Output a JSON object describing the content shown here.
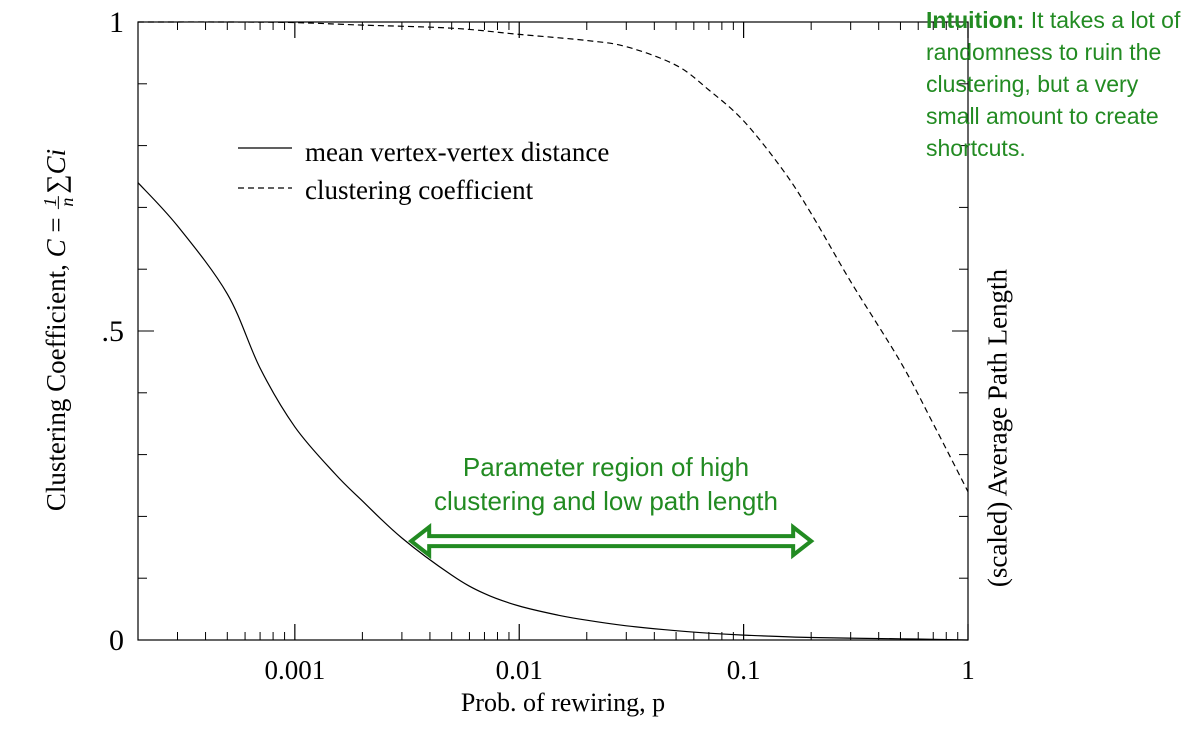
{
  "chart_data": {
    "type": "line",
    "x_scale": "log",
    "xlim": [
      0.0002,
      1
    ],
    "ylim": [
      0,
      1
    ],
    "x_ticks": [
      0.001,
      0.01,
      0.1,
      1
    ],
    "x_tick_labels": [
      "0.001",
      "0.01",
      "0.1",
      "1"
    ],
    "y_ticks": [
      0,
      0.5,
      1
    ],
    "y_tick_labels": [
      "0",
      ".5",
      "1"
    ],
    "xlabel": "Prob. of rewiring, p",
    "ylabel": {
      "text": "Clustering Coefficient, ",
      "var": "C",
      "eq": " = ",
      "frac_num": "1",
      "frac_den": "n",
      "sum": "∑",
      "term": "Ci"
    },
    "y2label": "(scaled) Average Path Length",
    "legend_placement": "upper-left",
    "series": [
      {
        "name": "mean vertex-vertex distance",
        "style": "solid",
        "x": [
          0.0002,
          0.0003,
          0.0005,
          0.0007,
          0.001,
          0.0015,
          0.002,
          0.003,
          0.005,
          0.007,
          0.01,
          0.015,
          0.02,
          0.03,
          0.05,
          0.07,
          0.1,
          0.2,
          0.5,
          1
        ],
        "y": [
          0.74,
          0.67,
          0.56,
          0.44,
          0.345,
          0.27,
          0.225,
          0.165,
          0.105,
          0.075,
          0.055,
          0.04,
          0.032,
          0.023,
          0.015,
          0.011,
          0.008,
          0.004,
          0.002,
          0.0
        ]
      },
      {
        "name": "clustering coefficient",
        "style": "dashed",
        "x": [
          0.0002,
          0.0005,
          0.001,
          0.002,
          0.005,
          0.01,
          0.02,
          0.03,
          0.05,
          0.07,
          0.1,
          0.15,
          0.2,
          0.3,
          0.5,
          0.7,
          1
        ],
        "y": [
          1.0,
          1.0,
          0.999,
          0.995,
          0.99,
          0.98,
          0.97,
          0.96,
          0.93,
          0.89,
          0.84,
          0.76,
          0.69,
          0.58,
          0.45,
          0.35,
          0.24
        ]
      }
    ],
    "annotations": {
      "region_arrow": {
        "from_x": 0.0033,
        "to_x": 0.2,
        "y": 0.16,
        "color": "#228b22"
      }
    }
  },
  "annotation_text": {
    "region": [
      "Parameter region of high",
      "clustering and low path length"
    ],
    "intuition_bold": "Intuition:",
    "intuition_rest": " It takes a lot of randomness to ruin the clustering, but a very small amount to create shortcuts."
  },
  "colors": {
    "annotation_green": "#228b22",
    "axis": "#000000",
    "line": "#000000"
  }
}
